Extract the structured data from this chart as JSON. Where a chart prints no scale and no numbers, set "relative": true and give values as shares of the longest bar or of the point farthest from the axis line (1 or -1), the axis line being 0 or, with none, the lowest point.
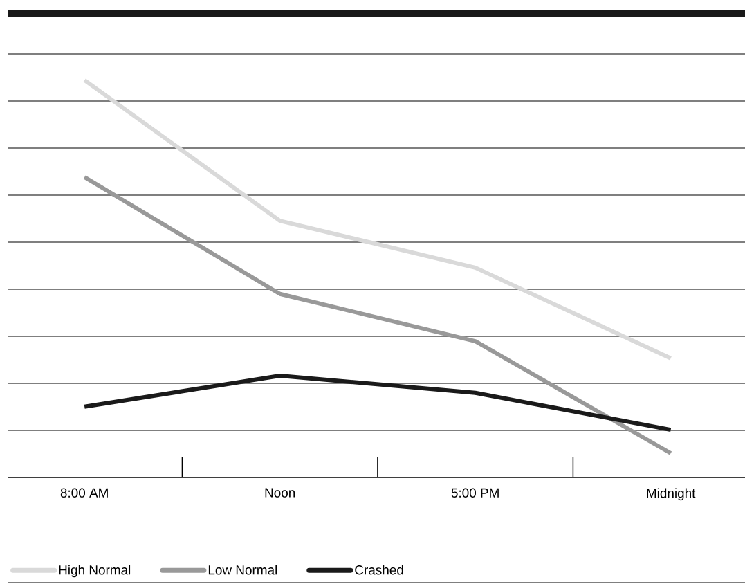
{
  "chart_data": {
    "type": "line",
    "relative": true,
    "grid": "y",
    "legend": "bottom",
    "marker": "none",
    "line_style": "solid",
    "categories": [
      "8:00 AM",
      "Noon",
      "5:00 PM",
      "Midnight"
    ],
    "series": [
      {
        "name": "High Normal",
        "color": "#d9d9d9",
        "values": [
          1,
          0.646,
          0.528,
          0.3
        ]
      },
      {
        "name": "Low Normal",
        "color": "#999999",
        "values": [
          0.756,
          0.462,
          0.343,
          0.061
        ]
      },
      {
        "name": "Crashed",
        "color": "#1a1a1a",
        "values": [
          0.178,
          0.256,
          0.213,
          0.12
        ]
      }
    ]
  }
}
